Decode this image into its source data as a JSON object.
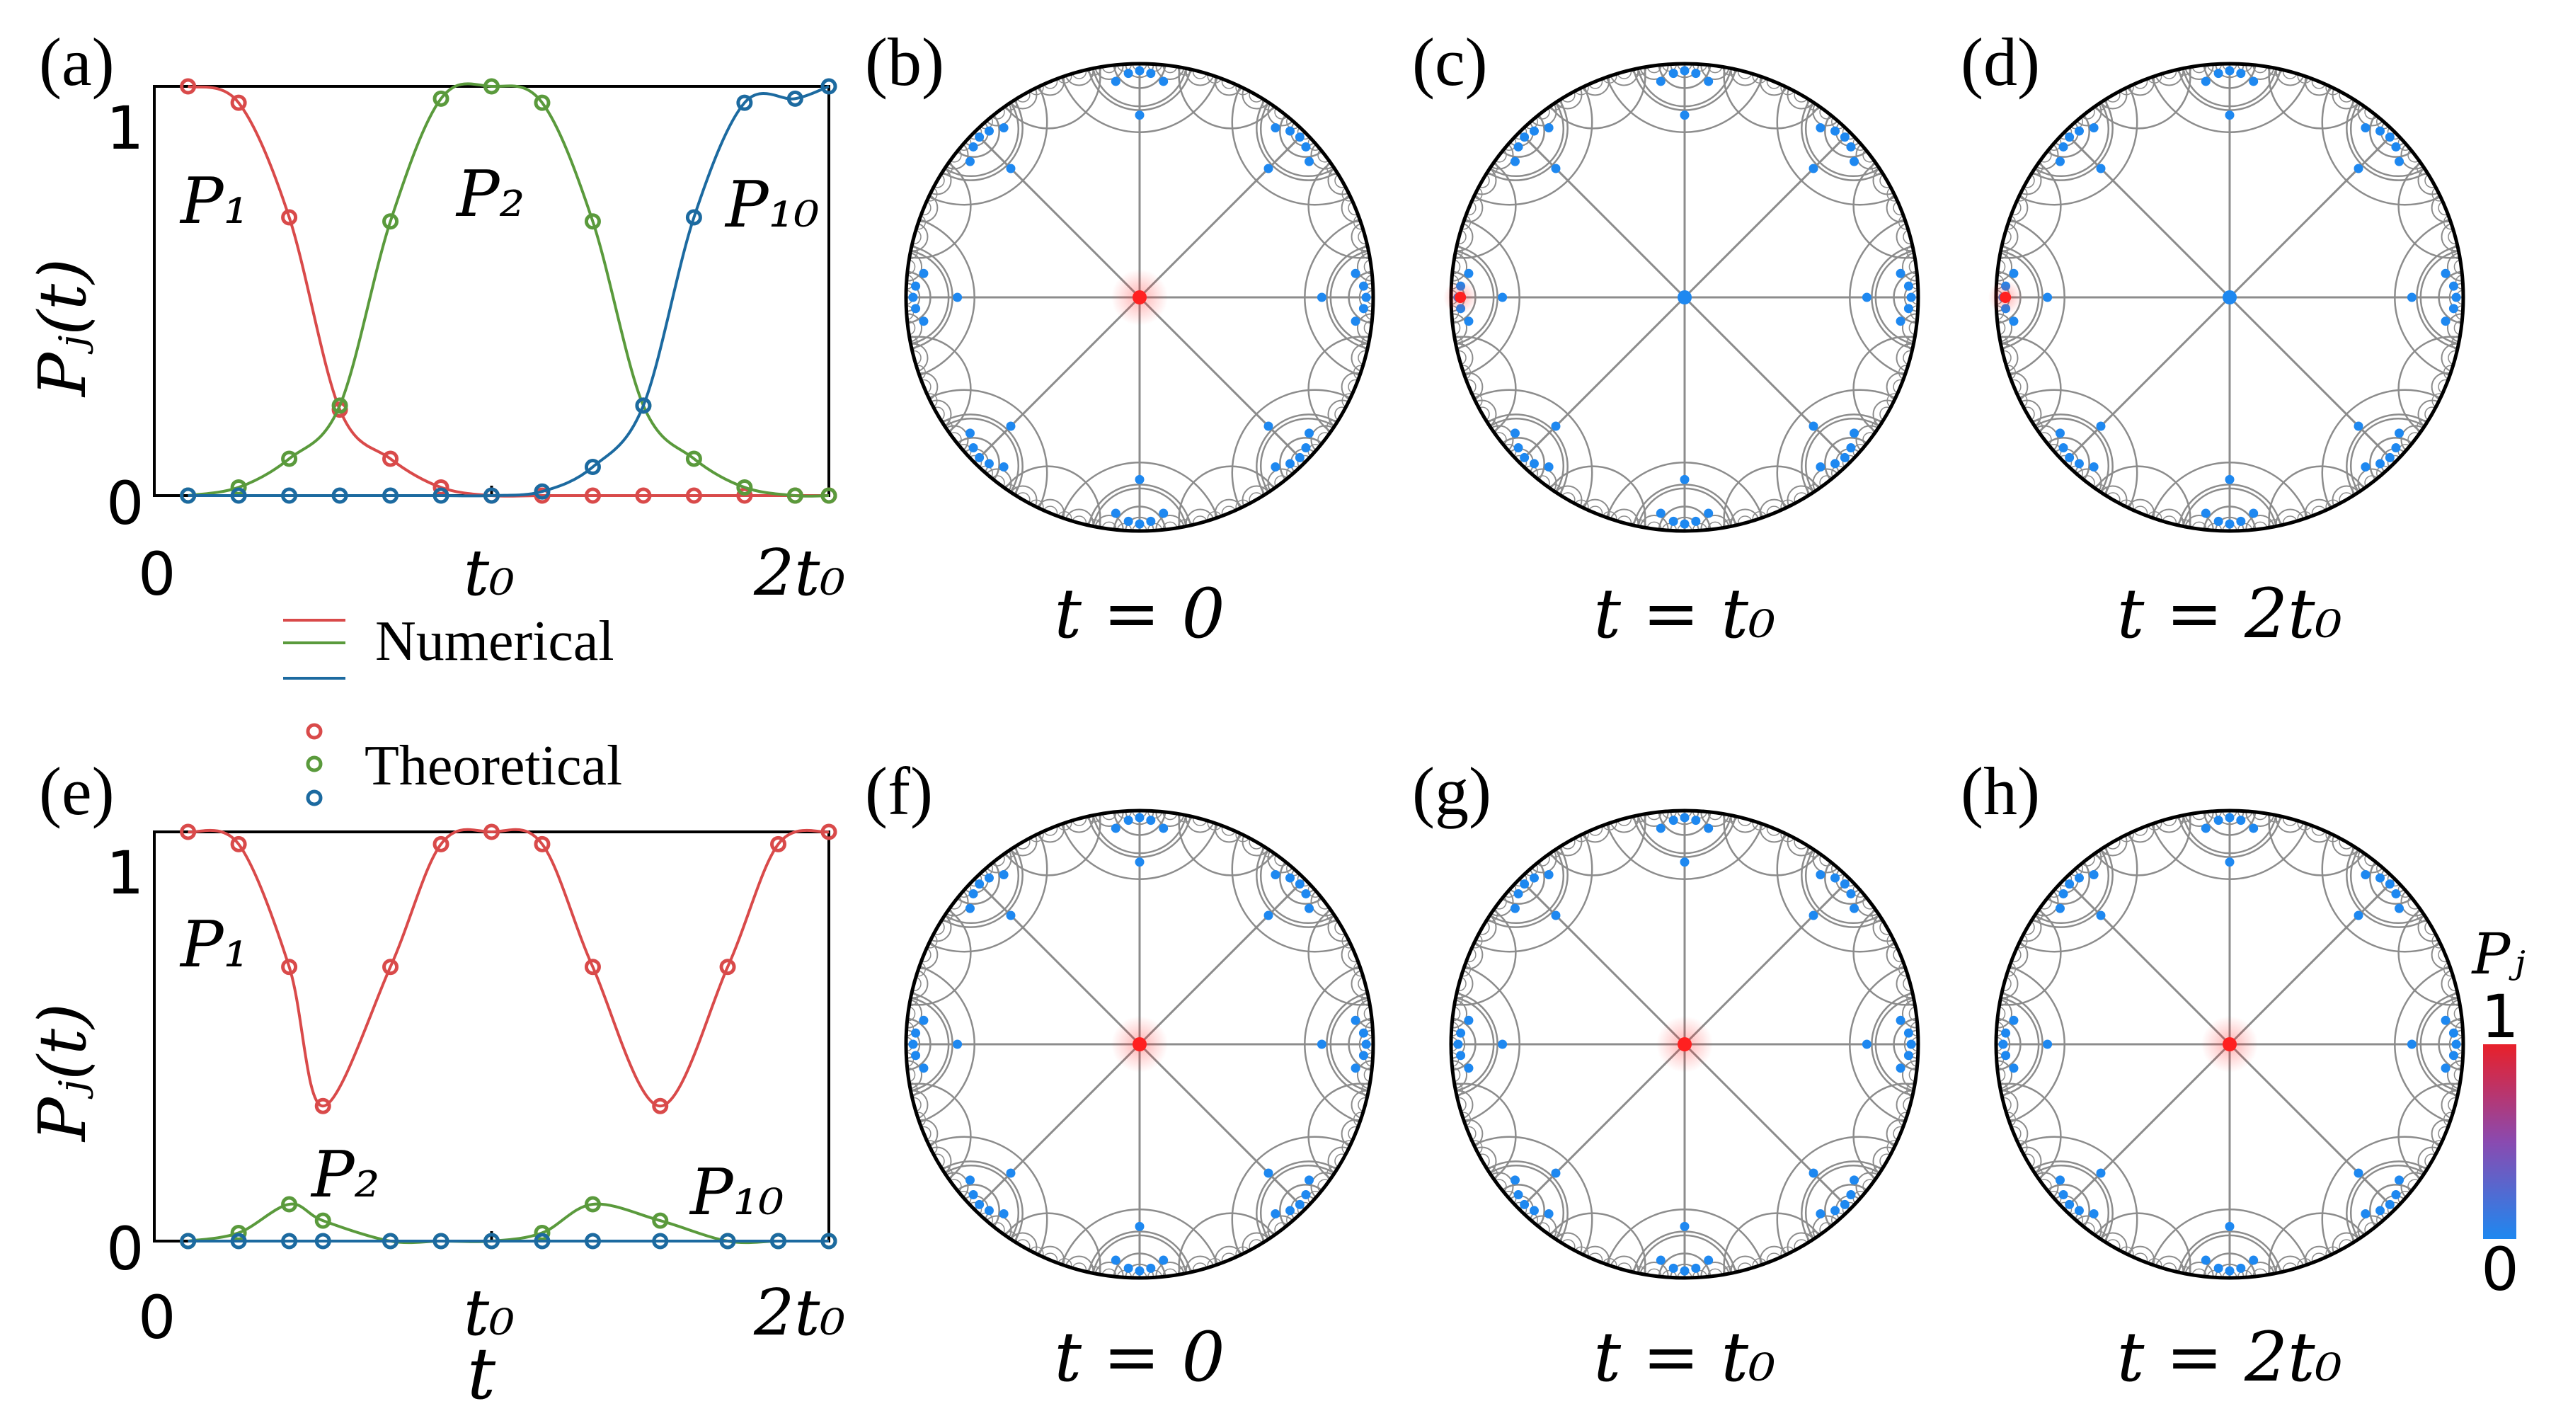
{
  "panel_labels": [
    "(a)",
    "(b)",
    "(c)",
    "(d)",
    "(e)",
    "(f)",
    "(g)",
    "(h)"
  ],
  "time_labels": [
    "t = 0",
    "t = t₀",
    "t = 2t₀"
  ],
  "legend": {
    "numerical": "Numerical",
    "theoretical": "Theoretical"
  },
  "colorbar": {
    "title": "Pⱼ",
    "max_label": "1",
    "min_label": "0",
    "color_high": "#e8202a",
    "color_low": "#1e88f0"
  },
  "colors": {
    "P1": "#d94a4a",
    "P2": "#5a9a3c",
    "P10": "#1c6aa0",
    "node": "#1e88f0",
    "active_node": "#ff2020",
    "geodesic": "#8c8c8c"
  },
  "chart_data": [
    {
      "type": "line",
      "panel": "(a)",
      "xlabel": "",
      "ylabel": "Pⱼ(t)",
      "xticks": [
        "0",
        "t₀",
        "2t₀"
      ],
      "yticks": [
        "0",
        "1"
      ],
      "xlim": [
        0,
        2
      ],
      "ylim": [
        0,
        1
      ],
      "series": [
        {
          "name": "P₁",
          "x": [
            0.1,
            0.25,
            0.4,
            0.55,
            0.7,
            0.85,
            1.0,
            1.15,
            1.3,
            1.45,
            1.6,
            1.75,
            1.9,
            2.0
          ],
          "values": [
            1.0,
            0.96,
            0.68,
            0.21,
            0.09,
            0.02,
            0.0,
            0.0,
            0.0,
            0.0,
            0.0,
            0.0,
            0.0,
            0.0
          ]
        },
        {
          "name": "P₂",
          "x": [
            0.1,
            0.25,
            0.4,
            0.55,
            0.7,
            0.85,
            1.0,
            1.15,
            1.3,
            1.45,
            1.6,
            1.75,
            1.9,
            2.0
          ],
          "values": [
            0.0,
            0.02,
            0.09,
            0.22,
            0.67,
            0.97,
            1.0,
            0.96,
            0.67,
            0.22,
            0.09,
            0.02,
            0.0,
            0.0
          ]
        },
        {
          "name": "P₁₀",
          "x": [
            0.1,
            0.25,
            0.4,
            0.55,
            0.7,
            0.85,
            1.0,
            1.15,
            1.3,
            1.45,
            1.6,
            1.75,
            1.9,
            2.0
          ],
          "values": [
            0.0,
            0.0,
            0.0,
            0.0,
            0.0,
            0.0,
            0.0,
            0.01,
            0.07,
            0.22,
            0.68,
            0.96,
            0.97,
            1.0
          ]
        }
      ]
    },
    {
      "type": "line",
      "panel": "(e)",
      "xlabel": "t",
      "ylabel": "Pⱼ(t)",
      "xticks": [
        "0",
        "t₀",
        "2t₀"
      ],
      "yticks": [
        "0",
        "1"
      ],
      "xlim": [
        0,
        2
      ],
      "ylim": [
        0,
        1
      ],
      "series": [
        {
          "name": "P₁",
          "x": [
            0.1,
            0.25,
            0.4,
            0.5,
            0.7,
            0.85,
            1.0,
            1.15,
            1.3,
            1.5,
            1.7,
            1.85,
            2.0
          ],
          "values": [
            1.0,
            0.97,
            0.67,
            0.33,
            0.67,
            0.97,
            1.0,
            0.97,
            0.67,
            0.33,
            0.67,
            0.97,
            1.0
          ]
        },
        {
          "name": "P₂",
          "x": [
            0.1,
            0.25,
            0.4,
            0.5,
            0.7,
            0.85,
            1.0,
            1.15,
            1.3,
            1.5,
            1.7,
            1.85,
            2.0
          ],
          "values": [
            0.0,
            0.02,
            0.09,
            0.05,
            0.0,
            0.0,
            0.0,
            0.02,
            0.09,
            0.05,
            0.0,
            0.0,
            0.0
          ]
        },
        {
          "name": "P₁₀",
          "x": [
            0.1,
            0.25,
            0.4,
            0.5,
            0.7,
            0.85,
            1.0,
            1.15,
            1.3,
            1.5,
            1.7,
            1.85,
            2.0
          ],
          "values": [
            0.0,
            0.0,
            0.0,
            0.0,
            0.0,
            0.0,
            0.0,
            0.0,
            0.0,
            0.0,
            0.0,
            0.0,
            0.0
          ]
        }
      ]
    }
  ],
  "disk_states": [
    {
      "panel": "(b)",
      "time": "t = 0",
      "active": "center"
    },
    {
      "panel": "(c)",
      "time": "t = t₀",
      "active": "left-boundary"
    },
    {
      "panel": "(d)",
      "time": "t = 2t₀",
      "active": "left-boundary"
    },
    {
      "panel": "(f)",
      "time": "t = 0",
      "active": "center"
    },
    {
      "panel": "(g)",
      "time": "t = t₀",
      "active": "center"
    },
    {
      "panel": "(h)",
      "time": "t = 2t₀",
      "active": "center"
    }
  ]
}
